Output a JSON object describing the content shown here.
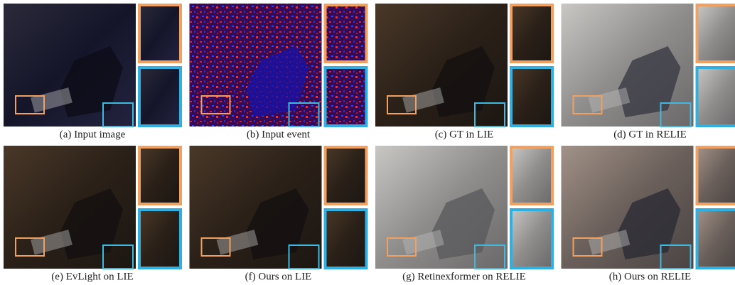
{
  "panels": [
    {
      "caption": "(a) Input image"
    },
    {
      "caption": "(b) Input event"
    },
    {
      "caption": "(c) GT in LIE"
    },
    {
      "caption": "(d) GT in RELIE"
    },
    {
      "caption": "(e) EvLight on LIE"
    },
    {
      "caption": "(f) Ours on LIE"
    },
    {
      "caption": "(g) Retinexformer on RELIE"
    },
    {
      "caption": "(h) Ours on RELIE"
    }
  ]
}
